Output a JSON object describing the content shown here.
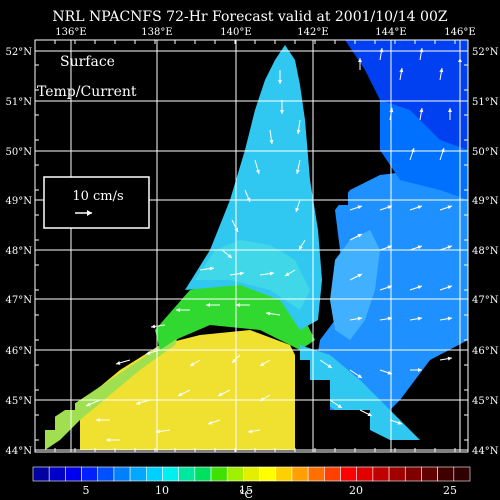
{
  "title": "NRL NPACNFS 72-Hr Forecast valid at 2001/10/14 00Z",
  "panel_label_line1": "Surface",
  "panel_label_line2": "Temp/Current",
  "scale_label": "10 cm/s",
  "colorbar_unit": "°C",
  "lon_labels": [
    "136°E",
    "138°E",
    "140°E",
    "142°E",
    "144°E",
    "146°E"
  ],
  "lat_labels": [
    "52°N",
    "51°N",
    "50°N",
    "49°N",
    "48°N",
    "47°N",
    "46°N",
    "45°N",
    "44°N"
  ],
  "colorbar_ticks": [
    "5",
    "10",
    "15",
    "20",
    "25"
  ],
  "colors": {
    "background": "#000000",
    "grid": "#ffffff",
    "land": "#000000",
    "arrow": "#ffffff"
  },
  "colorbar_colors": [
    "#0000a0",
    "#0000c8",
    "#0000f0",
    "#0020ff",
    "#0050ff",
    "#0080ff",
    "#00a8ff",
    "#00d0ff",
    "#00f0f0",
    "#00e8a0",
    "#00e060",
    "#40e000",
    "#a0f000",
    "#e0f000",
    "#ffff00",
    "#ffd000",
    "#ffa000",
    "#ff7000",
    "#ff4000",
    "#ff0000",
    "#e00000",
    "#c00000",
    "#a00000",
    "#800000",
    "#600000",
    "#400000",
    "#300000"
  ]
}
